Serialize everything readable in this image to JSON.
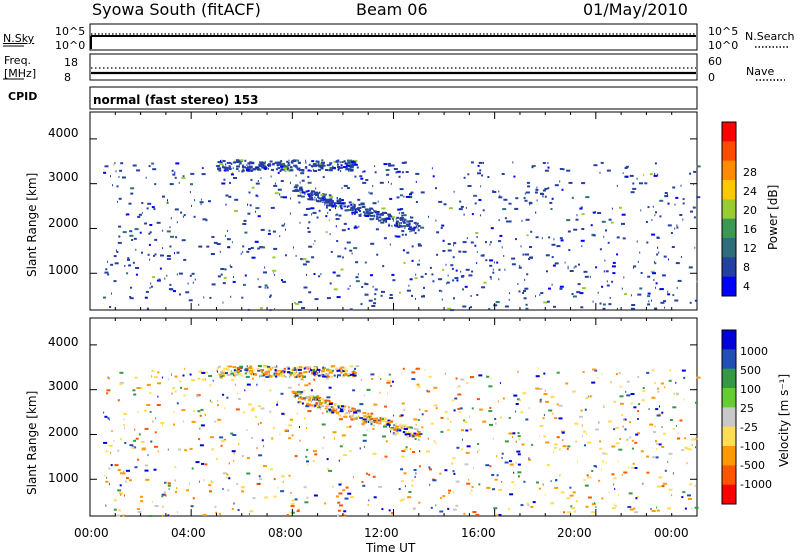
{
  "header": {
    "station": "Syowa South (fitACF)",
    "beam": "Beam 06",
    "date": "01/May/2010"
  },
  "nsky_panel": {
    "left_label": "N.Sky",
    "left_ticks": [
      "10^5",
      "10^0"
    ],
    "right_ticks": [
      "10^5",
      "10^0"
    ],
    "right_label": "N.Search"
  },
  "freq_panel": {
    "left_label_1": "Freq.",
    "left_label_2": "[MHz]",
    "left_ticks": [
      "18",
      "8"
    ],
    "right_ticks": [
      "60",
      "0"
    ],
    "right_label": "Nave",
    "cpid_label": "CPID",
    "mode_label": "normal (fast stereo) 153"
  },
  "power_colorbar": {
    "label": "Power [dB]",
    "ticks": [
      "28",
      "24",
      "20",
      "16",
      "12",
      "8",
      "4"
    ],
    "colors": [
      "#ff0000",
      "#ff4a00",
      "#ff8c00",
      "#ffc800",
      "#99cc33",
      "#3c9955",
      "#2e6e7a",
      "#2440a0",
      "#0000ff"
    ]
  },
  "velocity_colorbar": {
    "label": "Velocity [m s⁻¹]",
    "ticks": [
      "1000",
      "500",
      "100",
      "25",
      "-25",
      "-100",
      "-500",
      "-1000"
    ],
    "colors": [
      "#0000d8",
      "#2050b4",
      "#339944",
      "#66cc33",
      "#c8c8c8",
      "#ffdd55",
      "#ff9900",
      "#ff5500",
      "#ff0000"
    ]
  },
  "chart_data": [
    {
      "type": "heatmap",
      "name": "power",
      "ylabel": "Slant Range [km]",
      "ylim": [
        180,
        4600
      ],
      "xlim": [
        0,
        24
      ],
      "yticks": [
        1000,
        2000,
        3000,
        4000
      ],
      "xticks": [
        "00:00",
        "04:00",
        "08:00",
        "12:00",
        "16:00",
        "20:00",
        "00:00"
      ],
      "scatter_bands": [
        {
          "t0": 0.5,
          "t1": 24,
          "r0": 200,
          "r1": 3500
        },
        {
          "t0": 5,
          "t1": 10.5,
          "r0": 3300,
          "r1": 3550
        },
        {
          "t0": 8,
          "t1": 13,
          "r0": 2000,
          "r1": 2900
        }
      ]
    },
    {
      "type": "heatmap",
      "name": "velocity",
      "ylabel": "Slant Range [km]",
      "xlabel": "Time UT",
      "ylim": [
        180,
        4600
      ],
      "xlim": [
        0,
        24
      ],
      "yticks": [
        1000,
        2000,
        3000,
        4000
      ],
      "xticks": [
        "00:00",
        "04:00",
        "08:00",
        "12:00",
        "16:00",
        "20:00",
        "00:00"
      ],
      "scatter_bands": [
        {
          "t0": 0.5,
          "t1": 24,
          "r0": 200,
          "r1": 3500
        },
        {
          "t0": 5,
          "t1": 10.5,
          "r0": 3300,
          "r1": 3550
        },
        {
          "t0": 8,
          "t1": 13,
          "r0": 2000,
          "r1": 2900
        }
      ]
    }
  ]
}
